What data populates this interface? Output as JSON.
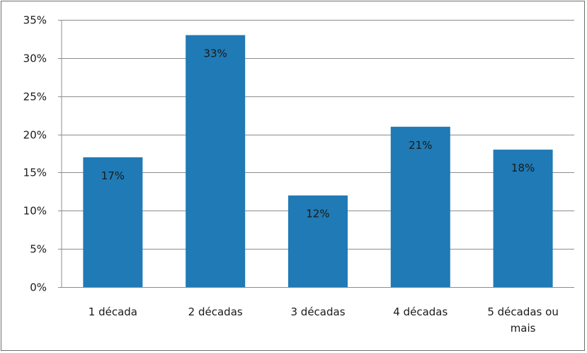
{
  "chart_data": {
    "type": "bar",
    "categories": [
      [
        "1 década"
      ],
      [
        "2 décadas"
      ],
      [
        "3 décadas"
      ],
      [
        "4 décadas"
      ],
      [
        "5 décadas ou",
        "mais"
      ]
    ],
    "values": [
      17,
      33,
      12,
      21,
      18
    ],
    "data_labels": [
      "17%",
      "33%",
      "12%",
      "21%",
      "18%"
    ],
    "yticks": [
      "0%",
      "5%",
      "10%",
      "15%",
      "20%",
      "25%",
      "30%",
      "35%"
    ],
    "ylim": [
      0,
      35
    ],
    "ystep": 5,
    "grid": true,
    "bar_color": "#1f7ab5",
    "grid_color": "#8c8c8c"
  }
}
